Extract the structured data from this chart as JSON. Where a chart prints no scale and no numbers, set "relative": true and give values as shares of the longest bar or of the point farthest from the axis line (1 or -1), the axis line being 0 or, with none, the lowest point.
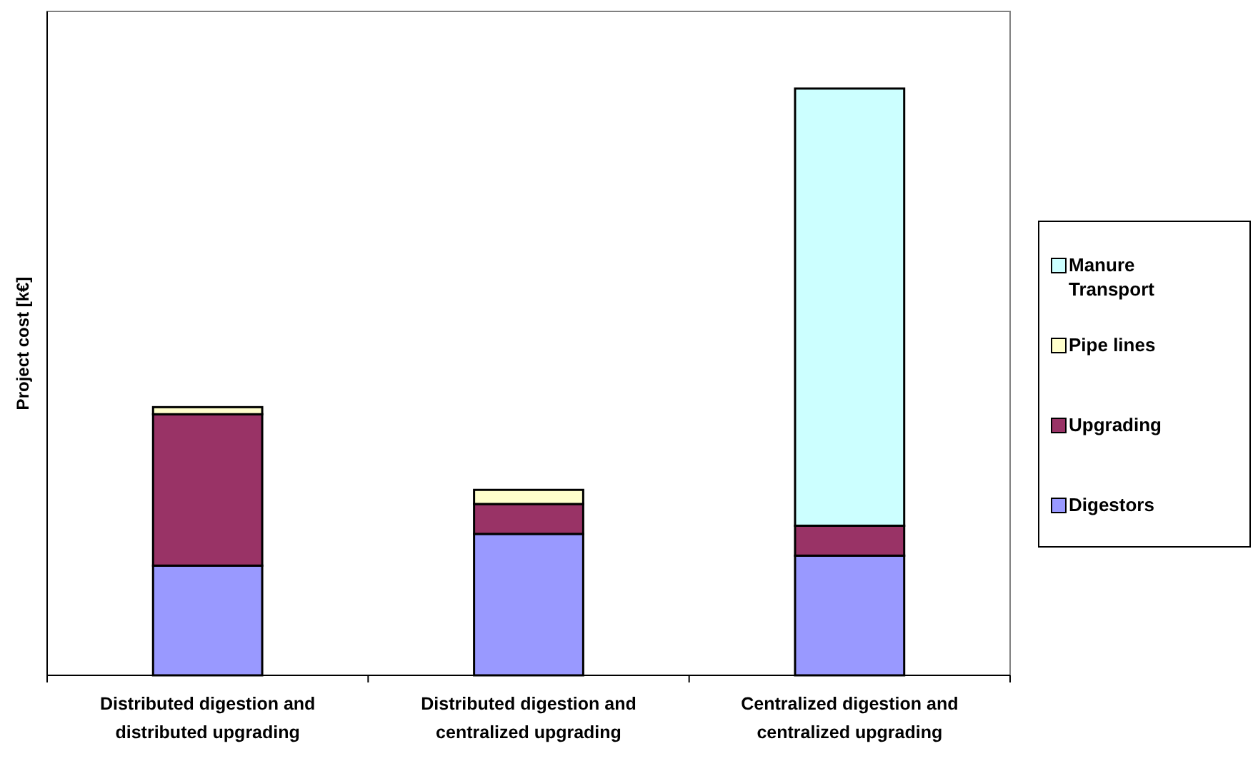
{
  "chart_data": {
    "type": "bar",
    "stacked": true,
    "relative": true,
    "ylabel": "Project cost [k€]",
    "legend": "right",
    "categories": [
      "Distributed digestion and distributed upgrading",
      "Distributed digestion and centralized upgrading",
      "Centralized digestion and centralized upgrading"
    ],
    "series": [
      {
        "name": "Digestors",
        "color": "#9999ff",
        "values": [
          0.187,
          0.241,
          0.204
        ]
      },
      {
        "name": "Upgrading",
        "color": "#993366",
        "values": [
          0.258,
          0.051,
          0.051
        ]
      },
      {
        "name": "Pipe lines",
        "color": "#ffffcc",
        "values": [
          0.012,
          0.024,
          0
        ]
      },
      {
        "name": "Manure Transport",
        "color": "#ccffff",
        "values": [
          0,
          0,
          0.745
        ]
      }
    ]
  }
}
